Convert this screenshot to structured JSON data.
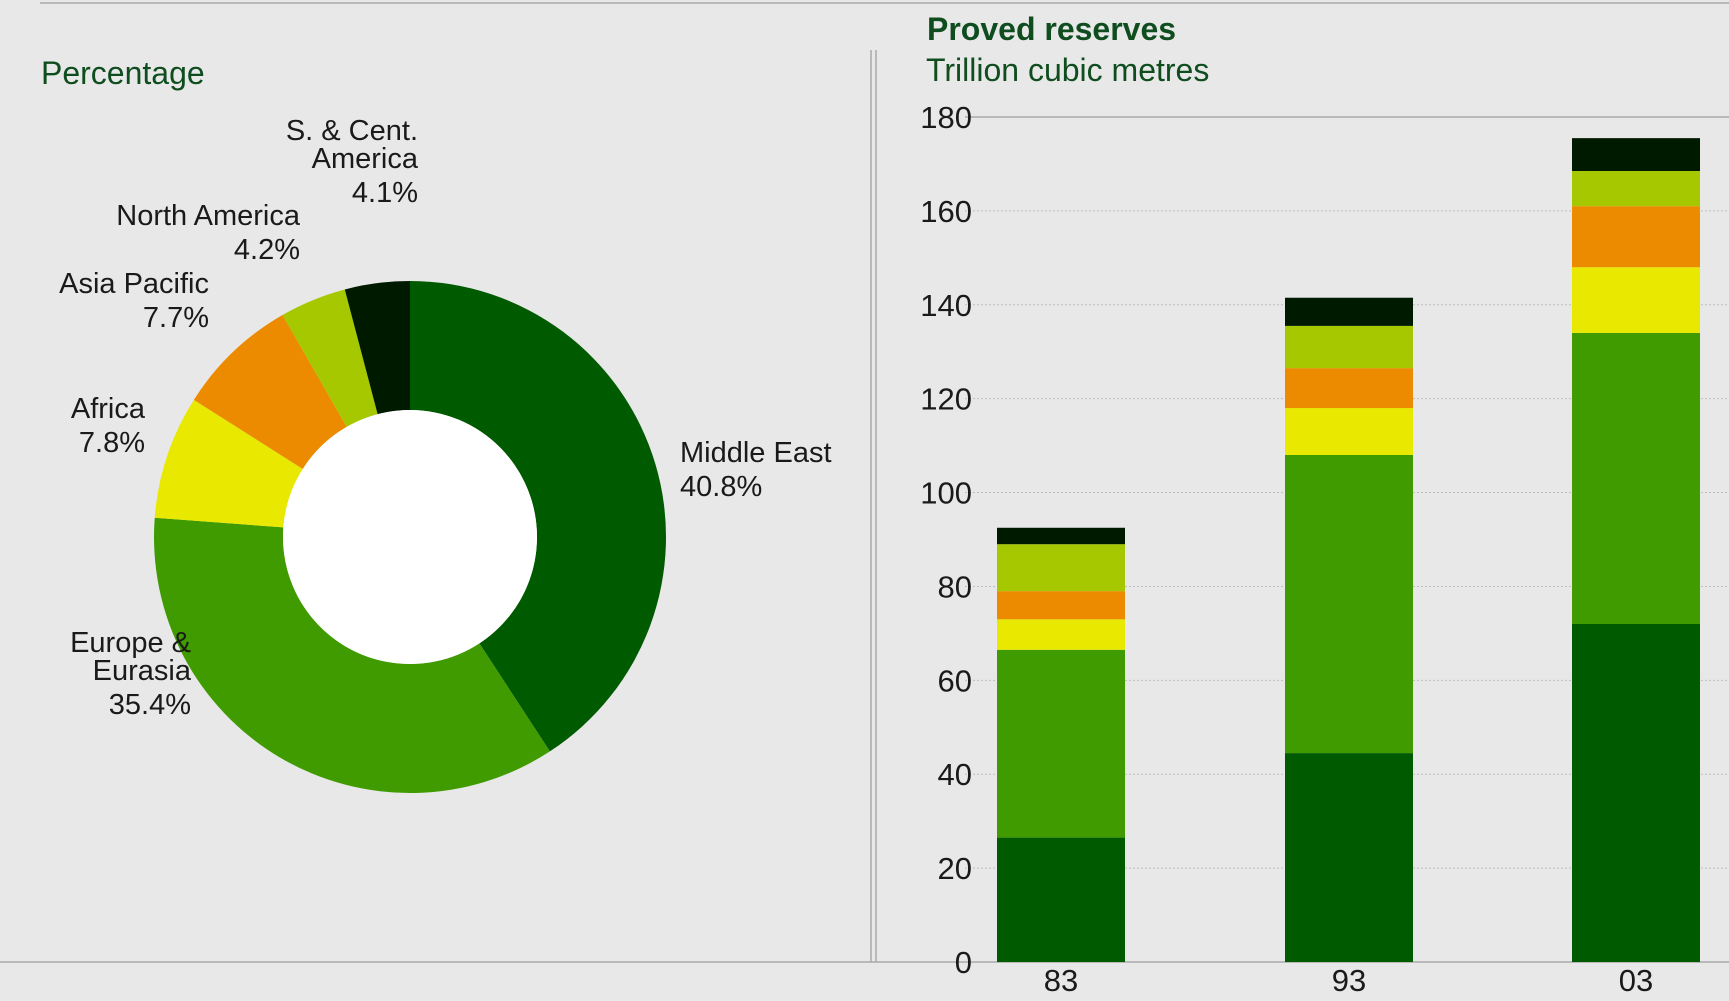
{
  "colors": {
    "background": "#e8e8e8",
    "title": "#0f4d1f",
    "middle_east": "#005a00",
    "europe_eurasia": "#3f9b00",
    "africa": "#e8e800",
    "asia_pacific": "#ec8a00",
    "north_america": "#a6c800",
    "s_cent_america": "#001a00"
  },
  "pie_panel": {
    "heading": "Percentage"
  },
  "bar_panel": {
    "title": "Proved reserves",
    "subtitle": "Trillion cubic metres"
  },
  "chart_data": [
    {
      "type": "pie",
      "variant": "donut",
      "title": "Percentage",
      "slices": [
        {
          "label": [
            "Middle East"
          ],
          "pct_text": "40.8%",
          "value": 40.8,
          "color": "#005a00"
        },
        {
          "label": [
            "Europe &",
            "Eurasia"
          ],
          "pct_text": "35.4%",
          "value": 35.4,
          "color": "#3f9b00"
        },
        {
          "label": [
            "Africa"
          ],
          "pct_text": "7.8%",
          "value": 7.8,
          "color": "#e8e800"
        },
        {
          "label": [
            "Asia Pacific"
          ],
          "pct_text": "7.7%",
          "value": 7.7,
          "color": "#ec8a00"
        },
        {
          "label": [
            "North America"
          ],
          "pct_text": "4.2%",
          "value": 4.2,
          "color": "#a6c800"
        },
        {
          "label": [
            "S. & Cent.",
            "America"
          ],
          "pct_text": "4.1%",
          "value": 4.1,
          "color": "#001a00"
        }
      ]
    },
    {
      "type": "bar",
      "stacked": true,
      "title": "Proved reserves",
      "ylabel": "Trillion cubic metres",
      "categories": [
        "83",
        "93",
        "03"
      ],
      "ylim": [
        0,
        180
      ],
      "yticks": [
        0,
        20,
        40,
        60,
        80,
        100,
        120,
        140,
        160,
        180
      ],
      "grid": true,
      "series": [
        {
          "values": [
            26.5,
            44.5,
            72.0
          ],
          "color": "#005a00"
        },
        {
          "values": [
            40.0,
            63.5,
            62.0
          ],
          "color": "#3f9b00"
        },
        {
          "values": [
            6.5,
            10.0,
            14.0
          ],
          "color": "#e8e800"
        },
        {
          "values": [
            6.0,
            8.5,
            13.0
          ],
          "color": "#ec8a00"
        },
        {
          "values": [
            10.0,
            9.0,
            7.5
          ],
          "color": "#a6c800"
        },
        {
          "values": [
            3.5,
            6.0,
            7.0
          ],
          "color": "#001a00"
        }
      ]
    }
  ]
}
